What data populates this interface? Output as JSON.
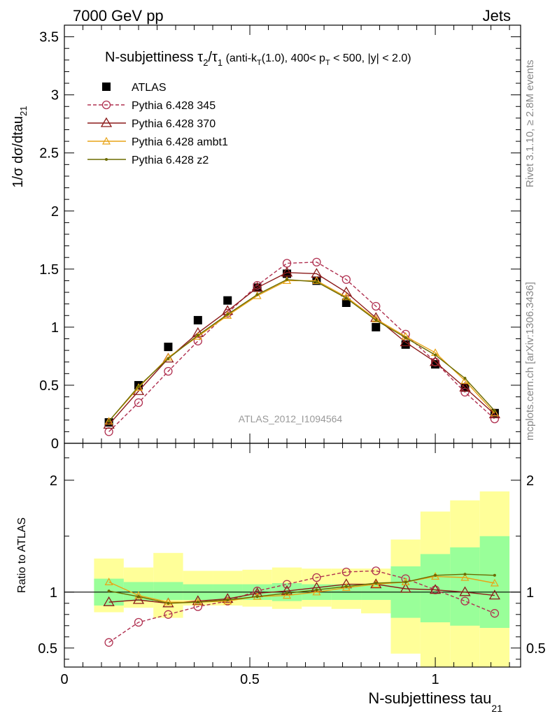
{
  "header": {
    "left": "7000 GeV pp",
    "right": "Jets"
  },
  "side_labels": {
    "rivet": "Rivet 3.1.10, ≥ 2.8M events",
    "mcplots": "mcplots.cern.ch [arXiv:1306.3436]"
  },
  "chart_data": {
    "type": "scatter",
    "title_main": "N-subjettiness τ",
    "title_sub2": "2",
    "title_slash": "/τ",
    "title_sub1": "1",
    "title_cuts": " (anti-k",
    "title_cuts_sub": "T",
    "title_cuts2": "(1.0), 400< p",
    "title_cuts2_sub": "T",
    "title_cuts3": " < 500, |y| < 2.0)",
    "analysis_id": "ATLAS_2012_I1094564",
    "ylabel_main": "1/σ dσ/dtau",
    "ylabel_main_sub": "21",
    "ylabel_ratio": "Ratio to ATLAS",
    "xlabel": "N-subjettiness tau",
    "xlabel_sub": "21",
    "xlim": [
      0,
      1.23
    ],
    "ylim_main": [
      0,
      3.6
    ],
    "ylim_ratio": [
      0.33,
      2.33
    ],
    "x_ticks": [
      "0",
      "0.5",
      "1"
    ],
    "y_ticks_main": [
      "0",
      "0.5",
      "1",
      "1.5",
      "2",
      "2.5",
      "3",
      "3.5"
    ],
    "y_ticks_ratio": [
      "0.5",
      "1",
      "2"
    ],
    "legend_position": "top-left",
    "bin_edges": [
      0.08,
      0.16,
      0.24,
      0.32,
      0.4,
      0.48,
      0.56,
      0.64,
      0.72,
      0.8,
      0.88,
      0.96,
      1.04,
      1.12,
      1.2
    ],
    "x": [
      0.12,
      0.2,
      0.28,
      0.36,
      0.44,
      0.52,
      0.6,
      0.68,
      0.76,
      0.84,
      0.92,
      1.0,
      1.08,
      1.16
    ],
    "series": [
      {
        "name": "ATLAS",
        "color": "#000000",
        "marker": "square",
        "values": [
          0.18,
          0.5,
          0.83,
          1.06,
          1.23,
          1.34,
          1.46,
          1.4,
          1.21,
          1.0,
          0.85,
          0.68,
          0.48,
          0.26
        ]
      },
      {
        "name": "Pythia 6.428 345",
        "color": "#b03050",
        "marker": "circle",
        "dashed": true,
        "values": [
          0.1,
          0.35,
          0.62,
          0.88,
          1.12,
          1.36,
          1.55,
          1.56,
          1.41,
          1.18,
          0.94,
          0.7,
          0.44,
          0.21
        ],
        "ratio": [
          0.55,
          0.73,
          0.8,
          0.87,
          0.92,
          1.01,
          1.07,
          1.13,
          1.18,
          1.19,
          1.12,
          1.02,
          0.92,
          0.81
        ]
      },
      {
        "name": "Pythia 6.428 370",
        "color": "#8b1a1a",
        "marker": "triangle",
        "values": [
          0.16,
          0.45,
          0.73,
          0.95,
          1.14,
          1.34,
          1.47,
          1.46,
          1.3,
          1.08,
          0.87,
          0.7,
          0.48,
          0.25
        ],
        "ratio": [
          0.91,
          0.93,
          0.9,
          0.92,
          0.94,
          0.99,
          1.01,
          1.04,
          1.07,
          1.07,
          1.03,
          1.02,
          1.0,
          0.97
        ]
      },
      {
        "name": "Pythia 6.428 ambt1",
        "color": "#e8a317",
        "marker": "triangle-small",
        "values": [
          0.19,
          0.48,
          0.74,
          0.92,
          1.1,
          1.27,
          1.4,
          1.4,
          1.26,
          1.07,
          0.92,
          0.78,
          0.54,
          0.26
        ],
        "ratio": [
          1.09,
          0.97,
          0.91,
          0.91,
          0.92,
          0.96,
          0.97,
          1.0,
          1.04,
          1.07,
          1.09,
          1.14,
          1.13,
          1.08
        ]
      },
      {
        "name": "Pythia 6.428 z2",
        "color": "#6b6b00",
        "marker": "dot",
        "values": [
          0.19,
          0.49,
          0.73,
          0.93,
          1.11,
          1.28,
          1.41,
          1.39,
          1.25,
          1.06,
          0.91,
          0.76,
          0.56,
          0.28
        ],
        "ratio": [
          1.01,
          0.96,
          0.9,
          0.91,
          0.93,
          0.96,
          0.99,
          1.02,
          1.05,
          1.08,
          1.09,
          1.15,
          1.16,
          1.15
        ]
      }
    ],
    "ratio_bands": {
      "green_color": "#99ff99",
      "yellow_color": "#ffff99",
      "green_lo": [
        0.88,
        0.92,
        0.93,
        0.93,
        0.93,
        0.93,
        0.92,
        0.93,
        0.93,
        0.93,
        0.77,
        0.73,
        0.7,
        0.68
      ],
      "green_hi": [
        1.12,
        1.09,
        1.09,
        1.07,
        1.07,
        1.07,
        1.08,
        1.07,
        1.07,
        1.07,
        1.23,
        1.34,
        1.4,
        1.5
      ],
      "yellow_lo": [
        0.82,
        0.86,
        0.77,
        0.88,
        0.88,
        0.87,
        0.85,
        0.87,
        0.85,
        0.81,
        0.45,
        0.33,
        0.33,
        0.33
      ],
      "yellow_hi": [
        1.3,
        1.22,
        1.35,
        1.19,
        1.19,
        1.2,
        1.22,
        1.21,
        1.21,
        1.21,
        1.47,
        1.72,
        1.82,
        1.9
      ]
    }
  }
}
